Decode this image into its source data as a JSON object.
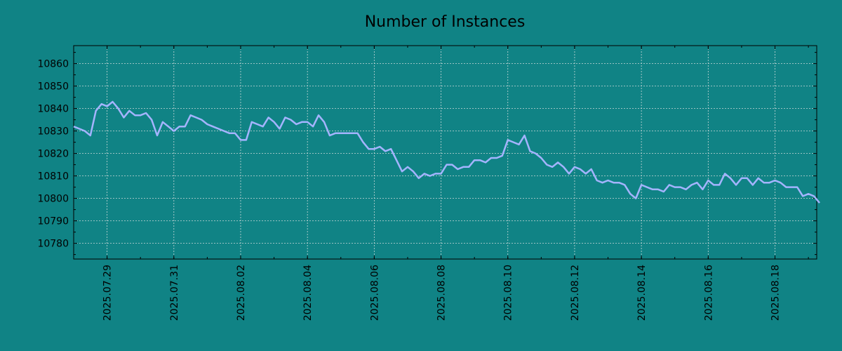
{
  "chart_data": {
    "type": "line",
    "title": "Number of Instances",
    "xlabel": "",
    "ylabel": "",
    "xlim": [
      "2025-07-28T00:00",
      "2025-08-19T06:00"
    ],
    "ylim": [
      10773,
      10868
    ],
    "yticks": [
      10780,
      10790,
      10800,
      10810,
      10820,
      10830,
      10840,
      10850,
      10860
    ],
    "xticks": [
      "2025.07.29",
      "2025.07.31",
      "2025.08.02",
      "2025.08.04",
      "2025.08.06",
      "2025.08.08",
      "2025.08.10",
      "2025.08.12",
      "2025.08.14",
      "2025.08.16",
      "2025.08.18"
    ],
    "grid": true,
    "colors": {
      "background": "#108385",
      "line": "#a4b4ff",
      "grid": "#c8d8d8"
    },
    "series": [
      {
        "interval_hours": 4,
        "x_start": "2025-07-28T00:00",
        "values": [
          10832,
          10831,
          10830,
          10828,
          10839,
          10842,
          10841,
          10843,
          10840,
          10836,
          10839,
          10837,
          10837,
          10838,
          10835,
          10828,
          10834,
          10832,
          10830,
          10832,
          10832,
          10837,
          10836,
          10835,
          10833,
          10832,
          10831,
          10830,
          10829,
          10829,
          10826,
          10826,
          10834,
          10833,
          10832,
          10836,
          10834,
          10831,
          10836,
          10835,
          10833,
          10834,
          10834,
          10832,
          10837,
          10834,
          10828,
          10829,
          10829,
          10829,
          10829,
          10829,
          10825,
          10822,
          10822,
          10823,
          10821,
          10822,
          10817,
          10812,
          10814,
          10812,
          10809,
          10811,
          10810,
          10811,
          10811,
          10815,
          10815,
          10813,
          10814,
          10814,
          10817,
          10817,
          10816,
          10818,
          10818,
          10819,
          10826,
          10825,
          10824,
          10828,
          10821,
          10820,
          10818,
          10815,
          10814,
          10816,
          10814,
          10811,
          10814,
          10813,
          10811,
          10813,
          10808,
          10807,
          10808,
          10807,
          10807,
          10806,
          10802,
          10800,
          10806,
          10805,
          10804,
          10804,
          10803,
          10806,
          10805,
          10805,
          10804,
          10806,
          10807,
          10804,
          10808,
          10806,
          10806,
          10811,
          10809,
          10806,
          10809,
          10809,
          10806,
          10809,
          10807,
          10807,
          10808,
          10807,
          10805,
          10805,
          10805,
          10801,
          10802,
          10801,
          10798
        ]
      }
    ]
  }
}
